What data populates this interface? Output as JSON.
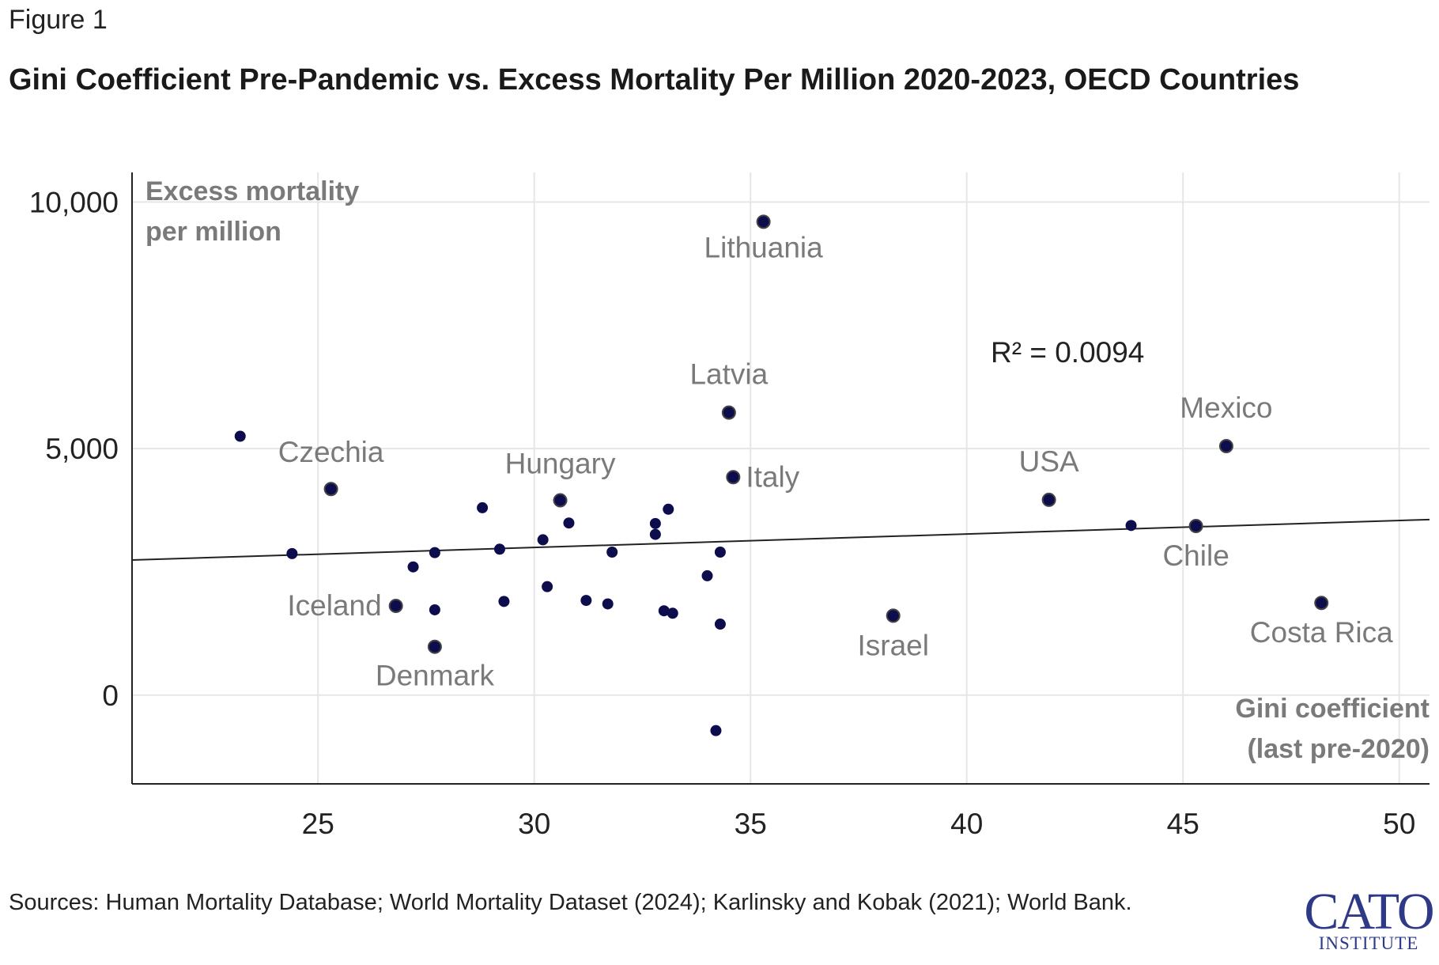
{
  "figure_label": "Figure 1",
  "title": "Gini Coefficient Pre-Pandemic vs. Excess Mortality Per Million 2020-2023, OECD Countries",
  "sources": "Sources: Human Mortality Database; World Mortality Dataset (2024); Karlinsky and Kobak (2021); World Bank.",
  "logo": {
    "main": "CATO",
    "sub": "INSTITUTE"
  },
  "colors": {
    "point": "#0d0d4d",
    "grid": "#e6e6e6",
    "axis": "#222222",
    "label": "#7a7a7a",
    "trend": "#222222",
    "logo": "#2e3a87"
  },
  "chart_data": {
    "type": "scatter",
    "title": "Gini Coefficient Pre-Pandemic vs. Excess Mortality Per Million 2020-2023, OECD Countries",
    "xlabel": "Gini coefficient (last pre-2020)",
    "xlabel_lines": [
      "Gini coefficient",
      "(last pre-2020)"
    ],
    "ylabel": "Excess mortality per million",
    "ylabel_lines": [
      "Excess mortality",
      "per million"
    ],
    "xlim": [
      20.7,
      50.7
    ],
    "ylim": [
      -1800,
      10600
    ],
    "xticks": [
      25,
      30,
      35,
      40,
      45,
      50
    ],
    "xtick_labels": [
      "25",
      "30",
      "35",
      "40",
      "45",
      "50"
    ],
    "yticks": [
      0,
      5000,
      10000
    ],
    "ytick_labels": [
      "0",
      "5,000",
      "10,000"
    ],
    "grid": true,
    "annotation": "R² = 0.0094",
    "trendline": {
      "x": [
        20.7,
        50.7
      ],
      "y": [
        2740,
        3560
      ]
    },
    "points": [
      {
        "x": 23.2,
        "y": 5250,
        "label": ""
      },
      {
        "x": 25.3,
        "y": 4180,
        "label": "Czechia"
      },
      {
        "x": 24.4,
        "y": 2870,
        "label": ""
      },
      {
        "x": 26.8,
        "y": 1810,
        "label": "Iceland"
      },
      {
        "x": 27.2,
        "y": 2600,
        "label": ""
      },
      {
        "x": 27.7,
        "y": 2890,
        "label": ""
      },
      {
        "x": 27.7,
        "y": 1730,
        "label": ""
      },
      {
        "x": 27.7,
        "y": 980,
        "label": "Denmark"
      },
      {
        "x": 28.8,
        "y": 3800,
        "label": ""
      },
      {
        "x": 29.2,
        "y": 2960,
        "label": ""
      },
      {
        "x": 29.3,
        "y": 1900,
        "label": ""
      },
      {
        "x": 30.2,
        "y": 3150,
        "label": ""
      },
      {
        "x": 30.3,
        "y": 2200,
        "label": ""
      },
      {
        "x": 30.6,
        "y": 3950,
        "label": "Hungary"
      },
      {
        "x": 30.8,
        "y": 3490,
        "label": ""
      },
      {
        "x": 31.2,
        "y": 1920,
        "label": ""
      },
      {
        "x": 31.7,
        "y": 1850,
        "label": ""
      },
      {
        "x": 31.8,
        "y": 2900,
        "label": ""
      },
      {
        "x": 32.8,
        "y": 3480,
        "label": ""
      },
      {
        "x": 32.8,
        "y": 3260,
        "label": ""
      },
      {
        "x": 33.0,
        "y": 1710,
        "label": ""
      },
      {
        "x": 33.1,
        "y": 3770,
        "label": ""
      },
      {
        "x": 33.2,
        "y": 1660,
        "label": ""
      },
      {
        "x": 34.0,
        "y": 2420,
        "label": ""
      },
      {
        "x": 34.2,
        "y": -720,
        "label": ""
      },
      {
        "x": 34.3,
        "y": 2900,
        "label": ""
      },
      {
        "x": 34.3,
        "y": 1440,
        "label": ""
      },
      {
        "x": 34.5,
        "y": 5730,
        "label": "Latvia"
      },
      {
        "x": 34.6,
        "y": 4420,
        "label": "Italy"
      },
      {
        "x": 35.3,
        "y": 9600,
        "label": "Lithuania"
      },
      {
        "x": 38.3,
        "y": 1610,
        "label": "Israel"
      },
      {
        "x": 41.9,
        "y": 3960,
        "label": "USA"
      },
      {
        "x": 43.8,
        "y": 3440,
        "label": ""
      },
      {
        "x": 45.3,
        "y": 3430,
        "label": "Chile"
      },
      {
        "x": 46.0,
        "y": 5050,
        "label": "Mexico"
      },
      {
        "x": 48.2,
        "y": 1870,
        "label": "Costa Rica"
      }
    ]
  }
}
